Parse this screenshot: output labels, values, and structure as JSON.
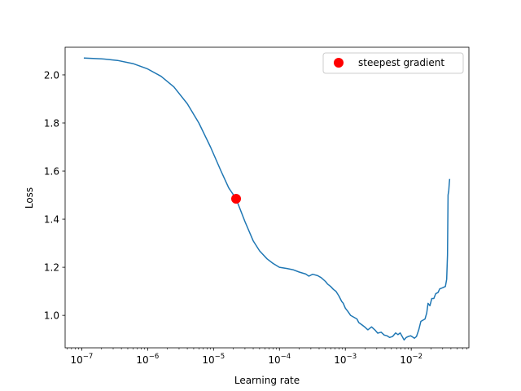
{
  "chart_data": {
    "type": "line",
    "xlabel": "Learning rate",
    "ylabel": "Loss",
    "x_scale": "log",
    "xlim": [
      5.6e-08,
      0.075
    ],
    "ylim": [
      0.865,
      2.115
    ],
    "x_ticks": [
      {
        "value": 1e-07,
        "base": "10",
        "exp": "−7"
      },
      {
        "value": 1e-06,
        "base": "10",
        "exp": "−6"
      },
      {
        "value": 1e-05,
        "base": "10",
        "exp": "−5"
      },
      {
        "value": 0.0001,
        "base": "10",
        "exp": "−4"
      },
      {
        "value": 0.001,
        "base": "10",
        "exp": "−3"
      },
      {
        "value": 0.01,
        "base": "10",
        "exp": "−2"
      }
    ],
    "y_ticks": [
      {
        "value": 1.0,
        "label": "1.0"
      },
      {
        "value": 1.2,
        "label": "1.2"
      },
      {
        "value": 1.4,
        "label": "1.4"
      },
      {
        "value": 1.6,
        "label": "1.6"
      },
      {
        "value": 1.8,
        "label": "1.8"
      },
      {
        "value": 2.0,
        "label": "2.0"
      }
    ],
    "grid": false,
    "legend_position": "top-right",
    "series": [
      {
        "color": "#1f77b4",
        "points": [
          [
            1.1e-07,
            2.07
          ],
          [
            2e-07,
            2.067
          ],
          [
            3.5e-07,
            2.06
          ],
          [
            6e-07,
            2.047
          ],
          [
            1e-06,
            2.025
          ],
          [
            1.6e-06,
            1.994
          ],
          [
            2.5e-06,
            1.95
          ],
          [
            4e-06,
            1.88
          ],
          [
            6e-06,
            1.8
          ],
          [
            9e-06,
            1.7
          ],
          [
            1.3e-05,
            1.6
          ],
          [
            1.7e-05,
            1.53
          ],
          [
            2.2e-05,
            1.485
          ],
          [
            3e-05,
            1.39
          ],
          [
            4e-05,
            1.31
          ],
          [
            5e-05,
            1.268
          ],
          [
            6.5e-05,
            1.235
          ],
          [
            8e-05,
            1.216
          ],
          [
            0.0001,
            1.2
          ],
          [
            0.00013,
            1.195
          ],
          [
            0.00016,
            1.19
          ],
          [
            0.0002,
            1.18
          ],
          [
            0.00025,
            1.172
          ],
          [
            0.00028,
            1.163
          ],
          [
            0.00032,
            1.171
          ],
          [
            0.00038,
            1.165
          ],
          [
            0.00043,
            1.157
          ],
          [
            0.0005,
            1.141
          ],
          [
            0.00054,
            1.13
          ],
          [
            0.0006,
            1.12
          ],
          [
            0.00066,
            1.108
          ],
          [
            0.00072,
            1.1
          ],
          [
            0.0008,
            1.08
          ],
          [
            0.00088,
            1.058
          ],
          [
            0.00093,
            1.05
          ],
          [
            0.001,
            1.03
          ],
          [
            0.0011,
            1.015
          ],
          [
            0.0012,
            1.0
          ],
          [
            0.00135,
            0.992
          ],
          [
            0.0015,
            0.985
          ],
          [
            0.0016,
            0.97
          ],
          [
            0.0018,
            0.96
          ],
          [
            0.002,
            0.95
          ],
          [
            0.0022,
            0.94
          ],
          [
            0.0025,
            0.952
          ],
          [
            0.0028,
            0.94
          ],
          [
            0.0031,
            0.926
          ],
          [
            0.0035,
            0.93
          ],
          [
            0.0039,
            0.918
          ],
          [
            0.0043,
            0.915
          ],
          [
            0.0047,
            0.908
          ],
          [
            0.0052,
            0.912
          ],
          [
            0.0058,
            0.927
          ],
          [
            0.0063,
            0.92
          ],
          [
            0.0068,
            0.927
          ],
          [
            0.0072,
            0.915
          ],
          [
            0.0078,
            0.898
          ],
          [
            0.0084,
            0.908
          ],
          [
            0.009,
            0.912
          ],
          [
            0.0098,
            0.915
          ],
          [
            0.0105,
            0.91
          ],
          [
            0.0112,
            0.905
          ],
          [
            0.012,
            0.912
          ],
          [
            0.013,
            0.94
          ],
          [
            0.014,
            0.975
          ],
          [
            0.015,
            0.98
          ],
          [
            0.0162,
            0.985
          ],
          [
            0.0172,
            1.01
          ],
          [
            0.018,
            1.05
          ],
          [
            0.0192,
            1.04
          ],
          [
            0.0205,
            1.07
          ],
          [
            0.022,
            1.07
          ],
          [
            0.0235,
            1.09
          ],
          [
            0.0255,
            1.095
          ],
          [
            0.027,
            1.11
          ],
          [
            0.03,
            1.115
          ],
          [
            0.033,
            1.12
          ],
          [
            0.0345,
            1.15
          ],
          [
            0.0355,
            1.25
          ],
          [
            0.0362,
            1.5
          ],
          [
            0.0372,
            1.52
          ],
          [
            0.0378,
            1.55
          ],
          [
            0.0382,
            1.565
          ]
        ]
      }
    ],
    "marker": {
      "label": "steepest gradient",
      "x": 2.2e-05,
      "y": 1.485,
      "color": "#ff0000"
    }
  }
}
